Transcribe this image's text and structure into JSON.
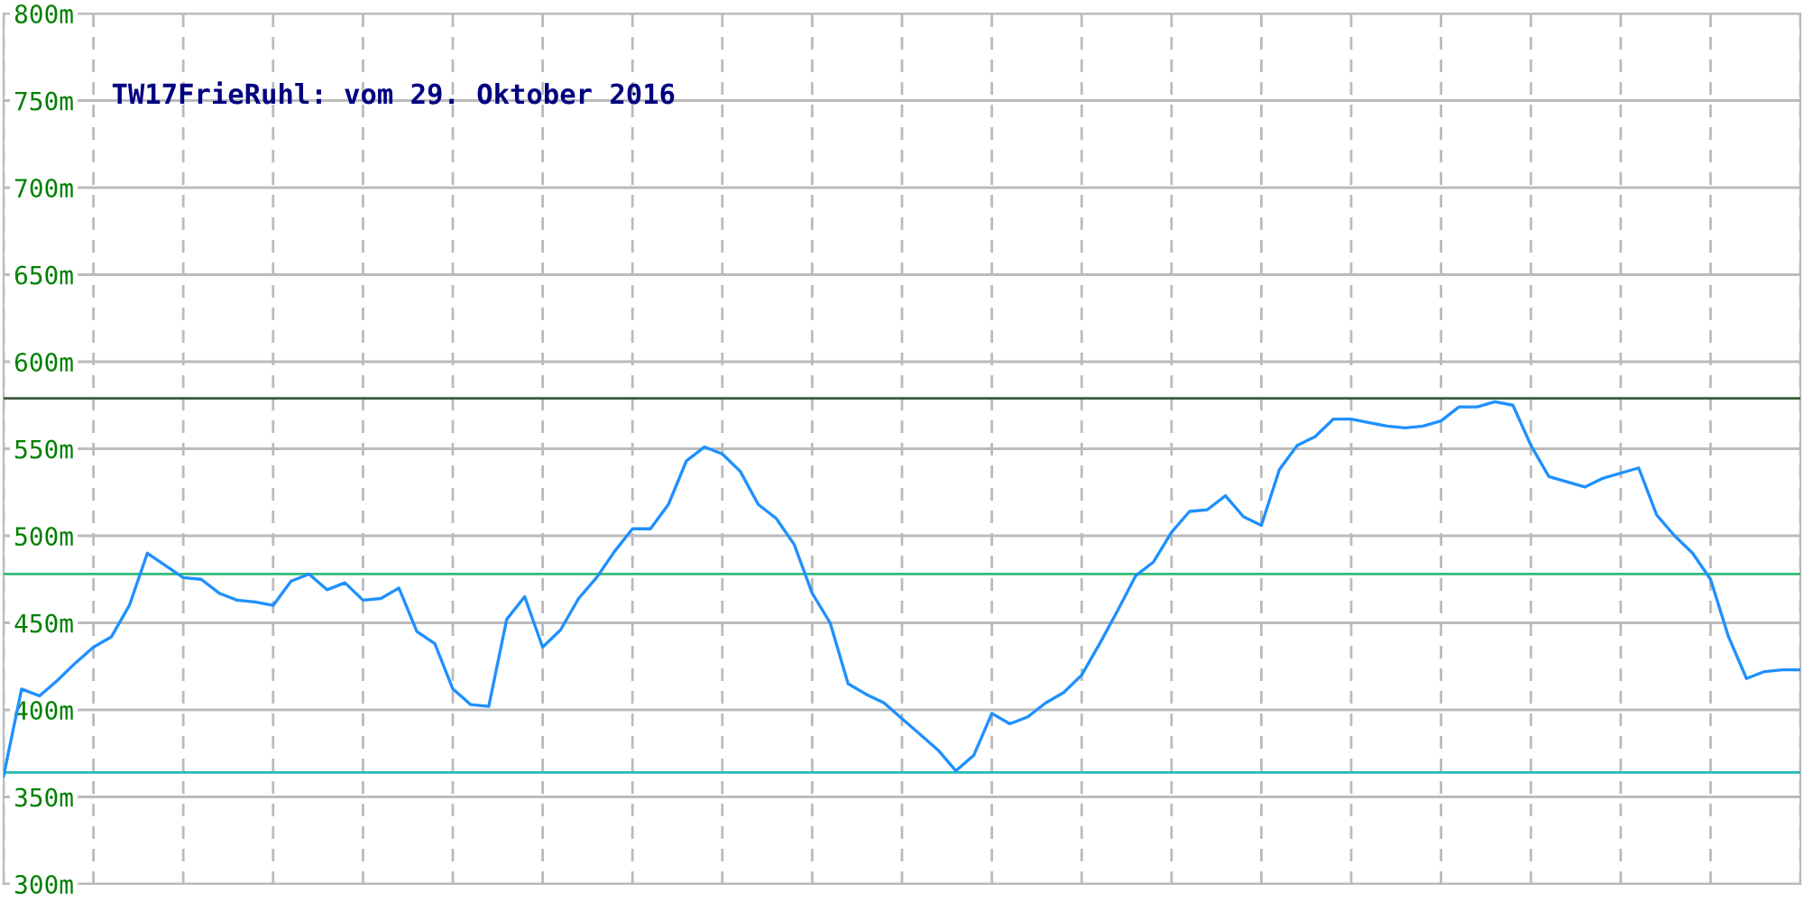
{
  "chart_data": {
    "type": "line",
    "title": "TW17FrieRuhl: vom 29. Oktober 2016",
    "categories": [
      null,
      null,
      null,
      null,
      null,
      null,
      null,
      null,
      null,
      null,
      null,
      null,
      null,
      null,
      null,
      null,
      null,
      null,
      null,
      null,
      null,
      null,
      null,
      null,
      null,
      null,
      null,
      null,
      null,
      null,
      null,
      null,
      null,
      null,
      null,
      null,
      null,
      null,
      null,
      null,
      null,
      null,
      null,
      null,
      null,
      null,
      null,
      null,
      null,
      null,
      null,
      null,
      null,
      null,
      null,
      null,
      null,
      null,
      null,
      null,
      null,
      null,
      null,
      null,
      null,
      null,
      null,
      null,
      null,
      null,
      null,
      null,
      null,
      null,
      null,
      null,
      null,
      null,
      null,
      null,
      null,
      null,
      null,
      null,
      null,
      null,
      null,
      null,
      null,
      null,
      null,
      null,
      null,
      null,
      null,
      null,
      null,
      null,
      null,
      null,
      null
    ],
    "series": [
      {
        "color": "#1e90ff",
        "values": [
          362,
          412,
          408,
          417,
          427,
          436,
          442,
          460,
          490,
          483,
          476,
          475,
          467,
          463,
          462,
          460,
          474,
          478,
          469,
          473,
          463,
          464,
          470,
          445,
          438,
          412,
          403,
          402,
          452,
          465,
          436,
          446,
          464,
          476,
          491,
          504,
          504,
          518,
          543,
          551,
          547,
          537,
          518,
          510,
          495,
          467,
          450,
          415,
          409,
          404,
          395,
          386,
          377,
          365,
          374,
          398,
          392,
          396,
          404,
          410,
          420,
          438,
          457,
          477,
          485,
          502,
          514,
          515,
          523,
          511,
          506,
          538,
          552,
          557,
          567,
          567,
          565,
          563,
          562,
          563,
          566,
          574,
          574,
          577,
          575,
          552,
          534,
          531,
          528,
          533,
          536,
          539,
          512,
          500,
          490,
          475,
          442,
          418,
          422,
          423,
          423
        ]
      }
    ],
    "ylim": [
      300,
      800
    ],
    "yticks": [
      {
        "value": 300,
        "label": "300m"
      },
      {
        "value": 350,
        "label": "350m"
      },
      {
        "value": 400,
        "label": "400m"
      },
      {
        "value": 450,
        "label": "450m"
      },
      {
        "value": 500,
        "label": "500m"
      },
      {
        "value": 550,
        "label": "550m"
      },
      {
        "value": 600,
        "label": "600m"
      },
      {
        "value": 650,
        "label": "650m"
      },
      {
        "value": 700,
        "label": "700m"
      },
      {
        "value": 750,
        "label": "750m"
      },
      {
        "value": 800,
        "label": "800m"
      }
    ],
    "ref_lines": [
      {
        "axis": "y",
        "value": 579,
        "color": "#3a5a3a"
      },
      {
        "axis": "y",
        "value": 478,
        "color": "#33bb77"
      },
      {
        "axis": "y",
        "value": 364,
        "color": "#22bbbb"
      }
    ],
    "grid": true,
    "marker": "none",
    "line_style": "solid",
    "legend": false
  }
}
